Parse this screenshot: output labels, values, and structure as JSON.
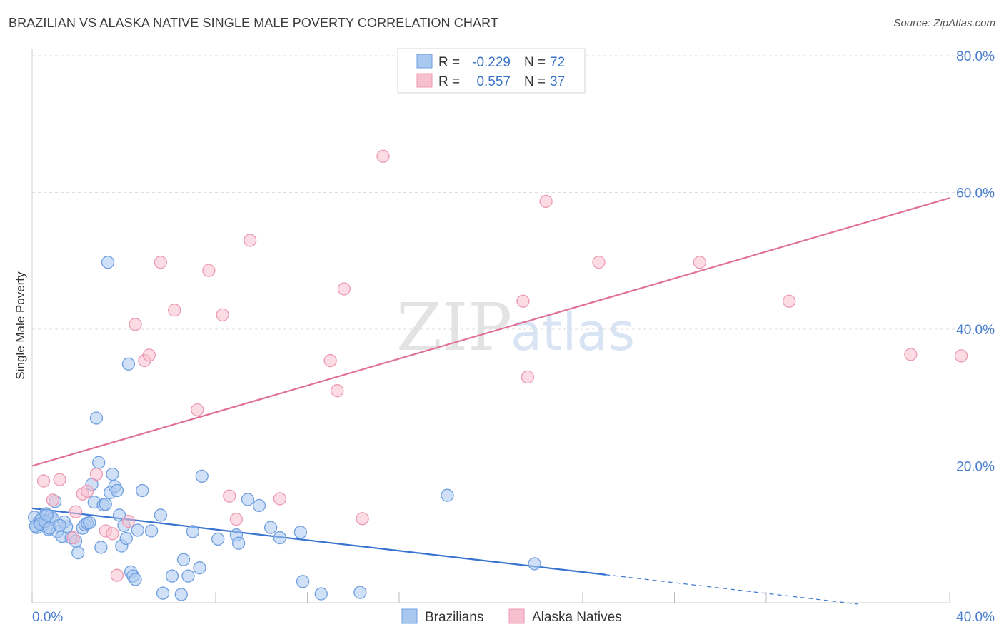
{
  "title": "BRAZILIAN VS ALASKA NATIVE SINGLE MALE POVERTY CORRELATION CHART",
  "source": "Source: ZipAtlas.com",
  "watermark": {
    "zip": "ZIP",
    "atlas": "atlas"
  },
  "colors": {
    "blue_fill": "#a9c8f0",
    "blue_stroke": "#6f9fe0",
    "blue_line": "#3a74d0",
    "pink_fill": "#f7c0d0",
    "pink_stroke": "#ec9ab3",
    "pink_line": "#e0709a",
    "grid": "#dddddd",
    "tick_text": "#4a7fcf"
  },
  "legend_box": [
    {
      "r_label": "R =",
      "r_value": "-0.229",
      "n_label": "N =",
      "n_value": "72"
    },
    {
      "r_label": "R =",
      "r_value": "0.557",
      "n_label": "N =",
      "n_value": "37"
    }
  ],
  "chart_data": {
    "type": "scatter",
    "title": "BRAZILIAN VS ALASKA NATIVE SINGLE MALE POVERTY CORRELATION CHART",
    "xlabel": "",
    "ylabel": "Single Male Poverty",
    "xlim": [
      0,
      40
    ],
    "ylim": [
      0,
      80
    ],
    "x_tick_labels": [
      "0.0%",
      "40.0%"
    ],
    "y_tick_values": [
      20,
      40,
      60,
      80
    ],
    "y_tick_labels": [
      "20.0%",
      "40.0%",
      "60.0%",
      "80.0%"
    ],
    "grid": true,
    "legend_position": "bottom-center",
    "series": [
      {
        "name": "Brazilians",
        "color": "#a9c8f0",
        "points": [
          [
            0.1,
            12.5
          ],
          [
            0.2,
            11.0
          ],
          [
            0.3,
            11.8
          ],
          [
            0.4,
            12.2
          ],
          [
            0.5,
            11.4
          ],
          [
            0.6,
            13.0
          ],
          [
            0.7,
            10.7
          ],
          [
            0.8,
            12.6
          ],
          [
            0.9,
            12.3
          ],
          [
            1.0,
            14.8
          ],
          [
            1.1,
            10.4
          ],
          [
            1.3,
            9.7
          ],
          [
            1.4,
            11.8
          ],
          [
            1.5,
            11.1
          ],
          [
            1.7,
            9.5
          ],
          [
            1.9,
            9.0
          ],
          [
            2.0,
            7.3
          ],
          [
            2.2,
            10.9
          ],
          [
            2.3,
            11.4
          ],
          [
            2.4,
            11.6
          ],
          [
            2.5,
            11.7
          ],
          [
            2.6,
            17.3
          ],
          [
            2.7,
            14.7
          ],
          [
            2.8,
            27.0
          ],
          [
            2.9,
            20.5
          ],
          [
            3.0,
            8.1
          ],
          [
            3.1,
            14.3
          ],
          [
            3.2,
            14.4
          ],
          [
            3.3,
            49.8
          ],
          [
            3.4,
            16.1
          ],
          [
            3.5,
            18.8
          ],
          [
            3.6,
            17.0
          ],
          [
            3.7,
            16.4
          ],
          [
            3.8,
            12.8
          ],
          [
            3.9,
            8.3
          ],
          [
            4.0,
            11.3
          ],
          [
            4.1,
            9.4
          ],
          [
            4.2,
            34.9
          ],
          [
            4.3,
            4.5
          ],
          [
            4.4,
            3.9
          ],
          [
            4.5,
            3.4
          ],
          [
            4.6,
            10.6
          ],
          [
            4.8,
            16.4
          ],
          [
            5.2,
            10.5
          ],
          [
            5.6,
            12.8
          ],
          [
            5.7,
            1.4
          ],
          [
            6.1,
            3.9
          ],
          [
            6.5,
            1.2
          ],
          [
            6.6,
            6.3
          ],
          [
            6.8,
            3.9
          ],
          [
            7.0,
            10.4
          ],
          [
            7.3,
            5.1
          ],
          [
            7.4,
            18.5
          ],
          [
            8.1,
            9.3
          ],
          [
            8.9,
            9.9
          ],
          [
            9.0,
            8.7
          ],
          [
            9.4,
            15.1
          ],
          [
            9.9,
            14.2
          ],
          [
            10.4,
            11.0
          ],
          [
            10.8,
            9.5
          ],
          [
            11.7,
            10.3
          ],
          [
            11.8,
            3.1
          ],
          [
            12.6,
            1.3
          ],
          [
            14.3,
            1.5
          ],
          [
            18.1,
            15.7
          ],
          [
            21.9,
            5.7
          ],
          [
            0.15,
            11.2
          ],
          [
            0.35,
            11.5
          ],
          [
            0.55,
            11.9
          ],
          [
            0.65,
            12.8
          ],
          [
            0.75,
            10.9
          ],
          [
            1.2,
            11.3
          ]
        ]
      },
      {
        "name": "Alaska Natives",
        "color": "#f7c0d0",
        "points": [
          [
            0.5,
            17.8
          ],
          [
            0.9,
            15.0
          ],
          [
            1.2,
            18.0
          ],
          [
            1.8,
            9.5
          ],
          [
            1.9,
            13.3
          ],
          [
            2.2,
            15.9
          ],
          [
            2.4,
            16.3
          ],
          [
            2.8,
            18.8
          ],
          [
            3.2,
            10.5
          ],
          [
            3.5,
            10.1
          ],
          [
            3.7,
            4.0
          ],
          [
            4.2,
            11.9
          ],
          [
            4.5,
            40.7
          ],
          [
            4.9,
            35.4
          ],
          [
            5.1,
            36.2
          ],
          [
            5.6,
            49.8
          ],
          [
            6.2,
            42.8
          ],
          [
            7.2,
            28.2
          ],
          [
            7.7,
            48.6
          ],
          [
            8.3,
            42.1
          ],
          [
            8.6,
            15.6
          ],
          [
            8.9,
            12.2
          ],
          [
            9.5,
            53.0
          ],
          [
            10.8,
            15.2
          ],
          [
            13.0,
            35.4
          ],
          [
            13.3,
            31.0
          ],
          [
            13.6,
            45.9
          ],
          [
            14.4,
            12.3
          ],
          [
            15.3,
            65.3
          ],
          [
            21.4,
            44.1
          ],
          [
            21.6,
            33.0
          ],
          [
            22.4,
            58.7
          ],
          [
            24.7,
            49.8
          ],
          [
            29.1,
            49.8
          ],
          [
            33.0,
            44.1
          ],
          [
            38.3,
            36.3
          ],
          [
            40.5,
            36.1
          ]
        ]
      }
    ],
    "trend_lines": [
      {
        "series": "Brazilians",
        "solid_from": [
          0,
          13.8
        ],
        "solid_to": [
          25,
          4.1
        ],
        "dashed_to": [
          36,
          -0.2
        ]
      },
      {
        "series": "Alaska Natives",
        "solid_from": [
          0,
          20.0
        ],
        "solid_to": [
          40,
          59.2
        ]
      }
    ]
  }
}
